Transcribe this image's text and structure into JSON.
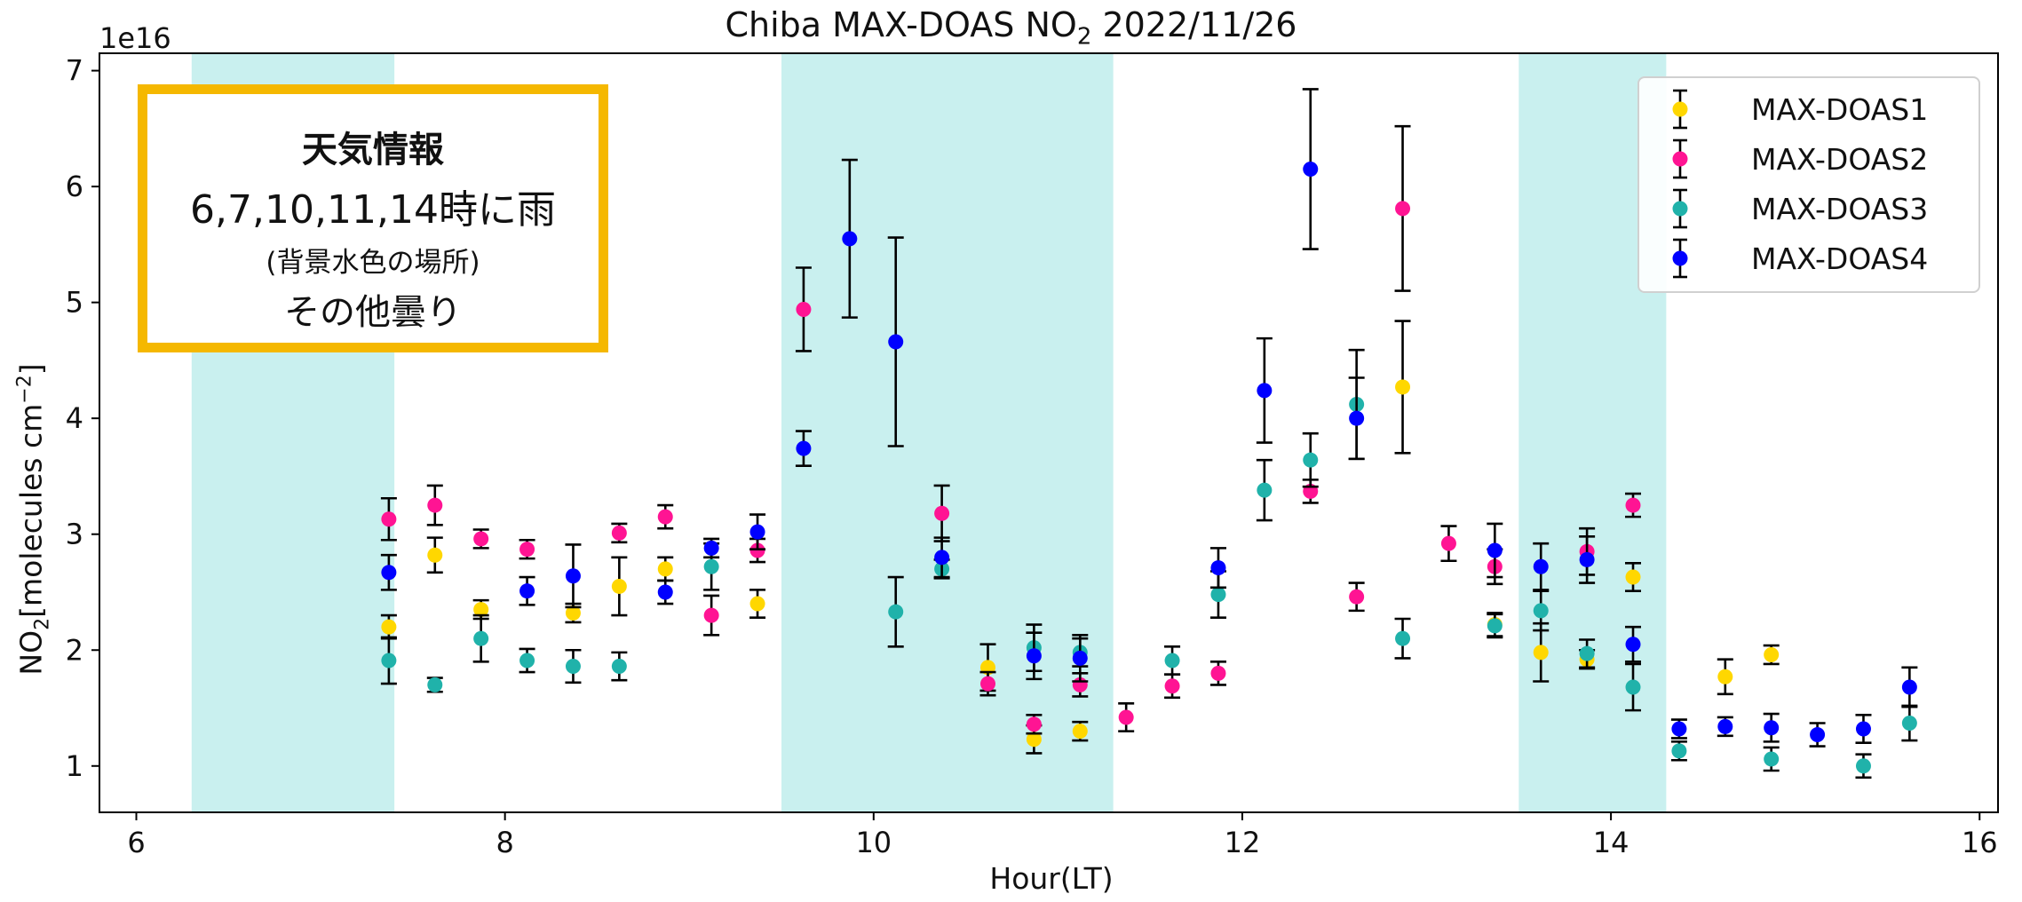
{
  "title": {
    "pre": "Chiba MAX-DOAS NO",
    "sub": "2",
    "post": " 2022/11/26"
  },
  "sci_notation": "1e16",
  "axis": {
    "xlabel": "Hour(LT)",
    "ylabel_pre": "NO",
    "ylabel_sub": "2",
    "ylabel_mid": "[molecules cm",
    "ylabel_sup": "−2",
    "ylabel_post": "]"
  },
  "info_box": {
    "title": "天気情報",
    "line1": "6,7,10,11,14時に雨",
    "line2": "(背景水色の場所)",
    "line3": "その他曇り"
  },
  "colors": {
    "mdoas1": "#ffd700",
    "mdoas2": "#ff1493",
    "mdoas3": "#20b2aa",
    "mdoas4": "#0000ff",
    "shade": "#c9f0ef",
    "infobox_border": "#f5b800"
  },
  "chart_data": {
    "type": "scatter",
    "title": "Chiba MAX-DOAS NO2 2022/11/26",
    "xlabel": "Hour(LT)",
    "ylabel": "NO2[molecules cm^-2]",
    "y_scale_factor": "1e16",
    "xlim": [
      5.8,
      16.1
    ],
    "ylim": [
      0.6,
      7.15
    ],
    "xticks": [
      6,
      8,
      10,
      12,
      14,
      16
    ],
    "yticks": [
      1,
      2,
      3,
      4,
      5,
      6,
      7
    ],
    "grid": false,
    "legend_position": "top-right",
    "shaded_regions": [
      [
        6.3,
        7.4
      ],
      [
        9.5,
        11.3
      ],
      [
        13.5,
        14.3
      ]
    ],
    "series": [
      {
        "name": "MAX-DOAS1",
        "color": "#ffd700",
        "points": [
          [
            7.37,
            2.2,
            0.1
          ],
          [
            7.62,
            2.82,
            0.15
          ],
          [
            7.87,
            2.35,
            0.08
          ],
          [
            8.37,
            2.32,
            0.08
          ],
          [
            8.62,
            2.55,
            0.25
          ],
          [
            8.87,
            2.7,
            0.1
          ],
          [
            9.37,
            2.4,
            0.12
          ],
          [
            10.62,
            1.85,
            0.2
          ],
          [
            10.87,
            1.23,
            0.12
          ],
          [
            11.12,
            1.3,
            0.08
          ],
          [
            12.87,
            4.27,
            0.57
          ],
          [
            13.37,
            2.22,
            0.1
          ],
          [
            13.62,
            1.98,
            0.25
          ],
          [
            13.87,
            1.92,
            0.08
          ],
          [
            14.12,
            2.63,
            0.12
          ],
          [
            14.62,
            1.77,
            0.15
          ],
          [
            14.87,
            1.96,
            0.08
          ]
        ]
      },
      {
        "name": "MAX-DOAS2",
        "color": "#ff1493",
        "points": [
          [
            7.37,
            3.13,
            0.18
          ],
          [
            7.62,
            3.25,
            0.17
          ],
          [
            7.87,
            2.96,
            0.08
          ],
          [
            8.12,
            2.87,
            0.08
          ],
          [
            8.62,
            3.01,
            0.08
          ],
          [
            8.87,
            3.15,
            0.1
          ],
          [
            9.12,
            2.3,
            0.17
          ],
          [
            9.37,
            2.86,
            0.1
          ],
          [
            9.62,
            4.94,
            0.36
          ],
          [
            10.37,
            3.18,
            0.24
          ],
          [
            10.62,
            1.71,
            0.1
          ],
          [
            10.87,
            1.36,
            0.08
          ],
          [
            11.12,
            1.7,
            0.1
          ],
          [
            11.37,
            1.42,
            0.12
          ],
          [
            11.62,
            1.69,
            0.1
          ],
          [
            11.87,
            1.8,
            0.1
          ],
          [
            12.37,
            3.37,
            0.1
          ],
          [
            12.62,
            2.46,
            0.12
          ],
          [
            12.87,
            5.81,
            0.71
          ],
          [
            13.12,
            2.92,
            0.15
          ],
          [
            13.37,
            2.72,
            0.15
          ],
          [
            13.87,
            2.85,
            0.2
          ],
          [
            14.12,
            3.25,
            0.1
          ]
        ]
      },
      {
        "name": "MAX-DOAS3",
        "color": "#20b2aa",
        "points": [
          [
            7.37,
            1.91,
            0.2
          ],
          [
            7.62,
            1.7,
            0.06
          ],
          [
            7.87,
            2.1,
            0.2
          ],
          [
            8.12,
            1.91,
            0.1
          ],
          [
            8.37,
            1.86,
            0.14
          ],
          [
            8.62,
            1.86,
            0.12
          ],
          [
            9.12,
            2.72,
            0.2
          ],
          [
            10.12,
            2.33,
            0.3
          ],
          [
            10.37,
            2.7,
            0.08
          ],
          [
            10.87,
            2.02,
            0.2
          ],
          [
            11.12,
            1.98,
            0.12
          ],
          [
            11.62,
            1.91,
            0.12
          ],
          [
            11.87,
            2.48,
            0.2
          ],
          [
            12.12,
            3.38,
            0.26
          ],
          [
            12.37,
            3.64,
            0.23
          ],
          [
            12.62,
            4.12,
            0.47
          ],
          [
            12.87,
            2.1,
            0.17
          ],
          [
            13.37,
            2.21,
            0.1
          ],
          [
            13.62,
            2.34,
            0.17
          ],
          [
            13.87,
            1.97,
            0.12
          ],
          [
            14.12,
            1.68,
            0.2
          ],
          [
            14.37,
            1.13,
            0.08
          ],
          [
            14.87,
            1.06,
            0.1
          ],
          [
            15.37,
            1.0,
            0.1
          ],
          [
            15.62,
            1.37,
            0.15
          ]
        ]
      },
      {
        "name": "MAX-DOAS4",
        "color": "#0000ff",
        "points": [
          [
            7.37,
            2.67,
            0.15
          ],
          [
            8.12,
            2.51,
            0.12
          ],
          [
            8.37,
            2.64,
            0.27
          ],
          [
            8.87,
            2.5,
            0.1
          ],
          [
            9.12,
            2.88,
            0.08
          ],
          [
            9.37,
            3.02,
            0.15
          ],
          [
            9.62,
            3.74,
            0.15
          ],
          [
            9.87,
            5.55,
            0.68
          ],
          [
            10.12,
            4.66,
            0.9
          ],
          [
            10.37,
            2.8,
            0.17
          ],
          [
            10.87,
            1.95,
            0.2
          ],
          [
            11.12,
            1.93,
            0.2
          ],
          [
            11.87,
            2.71,
            0.17
          ],
          [
            12.12,
            4.24,
            0.45
          ],
          [
            12.37,
            6.15,
            0.69
          ],
          [
            12.62,
            4.0,
            0.35
          ],
          [
            13.37,
            2.86,
            0.23
          ],
          [
            13.62,
            2.72,
            0.2
          ],
          [
            13.87,
            2.78,
            0.2
          ],
          [
            14.12,
            2.05,
            0.15
          ],
          [
            14.37,
            1.32,
            0.08
          ],
          [
            14.62,
            1.34,
            0.08
          ],
          [
            14.87,
            1.33,
            0.12
          ],
          [
            15.12,
            1.27,
            0.1
          ],
          [
            15.37,
            1.32,
            0.12
          ],
          [
            15.62,
            1.68,
            0.17
          ]
        ]
      }
    ]
  }
}
